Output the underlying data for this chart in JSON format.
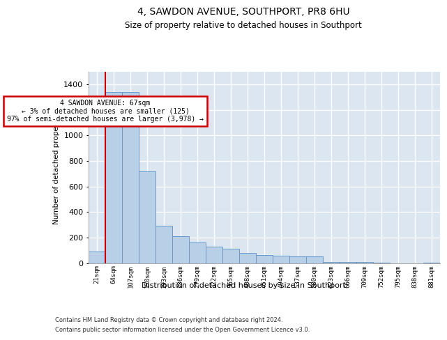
{
  "title": "4, SAWDON AVENUE, SOUTHPORT, PR8 6HU",
  "subtitle": "Size of property relative to detached houses in Southport",
  "xlabel": "Distribution of detached houses by size in Southport",
  "ylabel": "Number of detached properties",
  "footnote1": "Contains HM Land Registry data © Crown copyright and database right 2024.",
  "footnote2": "Contains public sector information licensed under the Open Government Licence v3.0.",
  "annotation_line0": "4 SAWDON AVENUE: 67sqm",
  "annotation_line1": "← 3% of detached houses are smaller (125)",
  "annotation_line2": "97% of semi-detached houses are larger (3,978) →",
  "bar_color": "#b8cfe8",
  "bar_edge_color": "#6699cc",
  "marker_color": "#cc0000",
  "annotation_box_edgecolor": "#cc0000",
  "background_color": "#dce6f0",
  "categories": [
    "21sqm",
    "64sqm",
    "107sqm",
    "150sqm",
    "193sqm",
    "236sqm",
    "279sqm",
    "322sqm",
    "365sqm",
    "408sqm",
    "451sqm",
    "494sqm",
    "537sqm",
    "580sqm",
    "623sqm",
    "666sqm",
    "709sqm",
    "752sqm",
    "795sqm",
    "838sqm",
    "881sqm"
  ],
  "values": [
    90,
    1340,
    1340,
    720,
    290,
    210,
    160,
    130,
    110,
    80,
    65,
    55,
    50,
    50,
    10,
    10,
    10,
    5,
    0,
    0,
    5
  ],
  "ylim": [
    0,
    1500
  ],
  "yticks": [
    0,
    200,
    400,
    600,
    800,
    1000,
    1200,
    1400
  ],
  "marker_bar_index": 1
}
